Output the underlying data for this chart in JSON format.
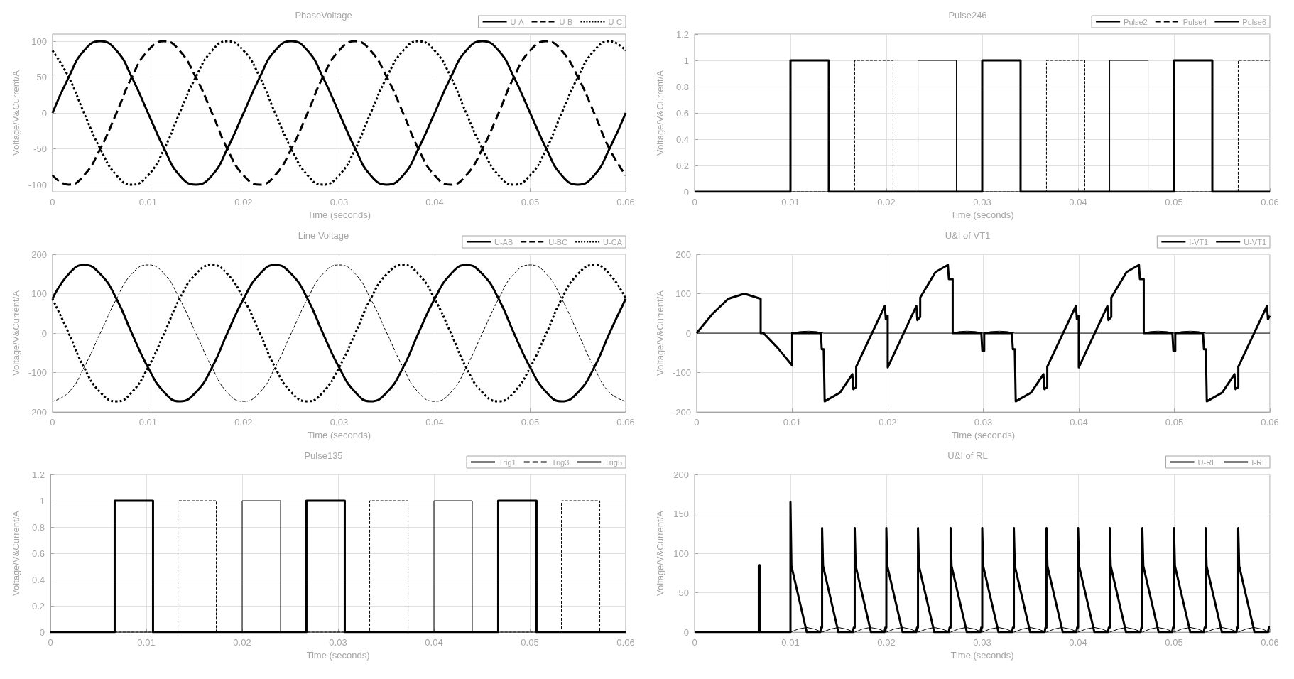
{
  "chart_data": [
    {
      "type": "line",
      "title": "PhaseVoltage",
      "xlabel": "Time (seconds)",
      "ylabel": "Voltage/V&Current/A",
      "xlim": [
        0,
        0.06
      ],
      "xticks": [
        0,
        0.01,
        0.02,
        0.03,
        0.04,
        0.05,
        0.06
      ],
      "ylim": [
        -110,
        110
      ],
      "yticks": [
        -100,
        -50,
        0,
        50,
        100
      ],
      "grid": true,
      "legend": "top right",
      "marker": "none",
      "x": [
        0,
        0.0017,
        0.0033,
        0.005,
        0.0067,
        0.0083,
        0.01,
        0.0117,
        0.0133,
        0.015,
        0.0167,
        0.0183,
        0.02,
        0.0217,
        0.0233,
        0.025,
        0.0267,
        0.0283,
        0.03,
        0.0317,
        0.0333,
        0.035,
        0.0367,
        0.0383,
        0.04,
        0.0417,
        0.0433,
        0.045,
        0.0467,
        0.0483,
        0.05,
        0.0517,
        0.0533,
        0.055,
        0.0567,
        0.0583,
        0.06
      ],
      "series": [
        {
          "name": "U-A",
          "color": "#000000",
          "line_style": "solid",
          "values": [
            0,
            50,
            87,
            100,
            87,
            50,
            0,
            -50,
            -87,
            -100,
            -87,
            -50,
            0,
            50,
            87,
            100,
            87,
            50,
            0,
            -50,
            -87,
            -100,
            -87,
            -50,
            0,
            50,
            87,
            100,
            87,
            50,
            0,
            -50,
            -87,
            -100,
            -87,
            -50,
            0
          ]
        },
        {
          "name": "U-B",
          "color": "#000000",
          "line_style": "dashed",
          "values": [
            -87,
            -100,
            -87,
            -50,
            0,
            50,
            87,
            100,
            87,
            50,
            0,
            -50,
            -87,
            -100,
            -87,
            -50,
            0,
            50,
            87,
            100,
            87,
            50,
            0,
            -50,
            -87,
            -100,
            -87,
            -50,
            0,
            50,
            87,
            100,
            87,
            50,
            0,
            -50,
            -87
          ]
        },
        {
          "name": "U-C",
          "color": "#000000",
          "line_style": "dotted",
          "values": [
            87,
            50,
            0,
            -50,
            -87,
            -100,
            -87,
            -50,
            0,
            50,
            87,
            100,
            87,
            50,
            0,
            -50,
            -87,
            -100,
            -87,
            -50,
            0,
            50,
            87,
            100,
            87,
            50,
            0,
            -50,
            -87,
            -100,
            -87,
            -50,
            0,
            50,
            87,
            100,
            87
          ]
        }
      ]
    },
    {
      "type": "line",
      "title": "Pulse246",
      "xlabel": "Time (seconds)",
      "ylabel": "Voltage/V&Current/A",
      "xlim": [
        0,
        0.06
      ],
      "xticks": [
        0,
        0.01,
        0.02,
        0.03,
        0.04,
        0.05,
        0.06
      ],
      "ylim": [
        0,
        1.2
      ],
      "yticks": [
        0,
        0.2,
        0.4,
        0.6,
        0.8,
        1,
        1.2
      ],
      "grid": true,
      "legend": "top right",
      "marker": "none",
      "series": [
        {
          "name": "Pulse2",
          "color": "#000000",
          "line_style": "solid",
          "x": [
            0,
            0.01,
            0.01,
            0.014,
            0.014,
            0.03,
            0.03,
            0.034,
            0.034,
            0.05,
            0.05,
            0.054,
            0.054,
            0.06
          ],
          "values": [
            0,
            0,
            1,
            1,
            0,
            0,
            1,
            1,
            0,
            0,
            1,
            1,
            0,
            0
          ]
        },
        {
          "name": "Pulse4",
          "color": "#000000",
          "line_style": "dashed",
          "x": [
            0,
            0.0167,
            0.0167,
            0.0207,
            0.0207,
            0.0367,
            0.0367,
            0.0407,
            0.0407,
            0.0567,
            0.0567,
            0.06
          ],
          "values": [
            0,
            0,
            1,
            1,
            0,
            0,
            1,
            1,
            0,
            0,
            1,
            1
          ]
        },
        {
          "name": "Pulse6",
          "color": "#000000",
          "line_style": "solid",
          "x": [
            0,
            0.0233,
            0.0233,
            0.0273,
            0.0273,
            0.0433,
            0.0433,
            0.0473,
            0.0473,
            0.06
          ],
          "values": [
            0,
            0,
            1,
            1,
            0,
            0,
            1,
            1,
            0,
            0
          ]
        }
      ]
    },
    {
      "type": "line",
      "title": "Line Voltage",
      "xlabel": "Time (seconds)",
      "ylabel": "Voltage/V&Current/A",
      "xlim": [
        0,
        0.06
      ],
      "xticks": [
        0,
        0.01,
        0.02,
        0.03,
        0.04,
        0.05,
        0.06
      ],
      "ylim": [
        -200,
        200
      ],
      "yticks": [
        -200,
        -100,
        0,
        100,
        200
      ],
      "grid": true,
      "legend": "top right",
      "marker": "none",
      "x": [
        0,
        0.0017,
        0.0033,
        0.005,
        0.0067,
        0.0083,
        0.01,
        0.0117,
        0.0133,
        0.015,
        0.0167,
        0.0183,
        0.02,
        0.0217,
        0.0233,
        0.025,
        0.0267,
        0.0283,
        0.03,
        0.0317,
        0.0333,
        0.035,
        0.0367,
        0.0383,
        0.04,
        0.0417,
        0.0433,
        0.045,
        0.0467,
        0.0483,
        0.05,
        0.0517,
        0.0533,
        0.055,
        0.0567,
        0.0583,
        0.06
      ],
      "series": [
        {
          "name": "U-AB",
          "color": "#000000",
          "line_style": "solid",
          "values": [
            87,
            150,
            173,
            150,
            87,
            0,
            -87,
            -150,
            -173,
            -150,
            -87,
            0,
            87,
            150,
            173,
            150,
            87,
            0,
            -87,
            -150,
            -173,
            -150,
            -87,
            0,
            87,
            150,
            173,
            150,
            87,
            0,
            -87,
            -150,
            -173,
            -150,
            -87,
            0,
            87
          ]
        },
        {
          "name": "U-BC",
          "color": "#000000",
          "line_style": "dashed",
          "values": [
            -173,
            -150,
            -87,
            0,
            87,
            150,
            173,
            150,
            87,
            0,
            -87,
            -150,
            -173,
            -150,
            -87,
            0,
            87,
            150,
            173,
            150,
            87,
            0,
            -87,
            -150,
            -173,
            -150,
            -87,
            0,
            87,
            150,
            173,
            150,
            87,
            0,
            -87,
            -150,
            -173
          ]
        },
        {
          "name": "U-CA",
          "color": "#000000",
          "line_style": "dotted",
          "values": [
            87,
            0,
            -87,
            -150,
            -173,
            -150,
            -87,
            0,
            87,
            150,
            173,
            150,
            87,
            0,
            -87,
            -150,
            -173,
            -150,
            -87,
            0,
            87,
            150,
            173,
            150,
            87,
            0,
            -87,
            -150,
            -173,
            -150,
            -87,
            0,
            87,
            150,
            173,
            150,
            87
          ]
        }
      ]
    },
    {
      "type": "line",
      "title": "U&I of VT1",
      "xlabel": "Time (seconds)",
      "ylabel": "Voltage/V&Current/A",
      "xlim": [
        0,
        0.06
      ],
      "xticks": [
        0,
        0.01,
        0.02,
        0.03,
        0.04,
        0.05,
        0.06
      ],
      "ylim": [
        -200,
        200
      ],
      "yticks": [
        -200,
        -100,
        0,
        100,
        200
      ],
      "grid": true,
      "legend": "top right",
      "marker": "none",
      "series": [
        {
          "name": "I-VT1",
          "color": "#000000",
          "line_style": "solid",
          "x": [
            0,
            0.01,
            0.0108,
            0.0117,
            0.0125,
            0.0133,
            0.0267,
            0.0275,
            0.0283,
            0.0292,
            0.03,
            0.0308,
            0.0317,
            0.0325,
            0.0333,
            0.0467,
            0.0475,
            0.0483,
            0.0492,
            0.05,
            0.0508,
            0.0517,
            0.0525,
            0.0533,
            0.06
          ],
          "values": [
            0,
            0,
            4,
            5,
            4,
            0,
            0,
            4,
            5,
            4,
            0,
            4,
            5,
            4,
            0,
            0,
            4,
            5,
            4,
            0,
            4,
            5,
            4,
            0,
            0
          ]
        },
        {
          "name": "U-VT1",
          "color": "#000000",
          "line_style": "solid",
          "x": [
            0,
            0.0017,
            0.0033,
            0.005,
            0.0067,
            0.0067,
            0.007,
            0.0085,
            0.01,
            0.01,
            0.013,
            0.0131,
            0.0133,
            0.0134,
            0.015,
            0.0163,
            0.0164,
            0.0167,
            0.0167,
            0.0197,
            0.0198,
            0.02,
            0.02,
            0.023,
            0.0231,
            0.0234,
            0.0234,
            0.025,
            0.0263,
            0.0264,
            0.0268,
            0.0268,
            0.0298,
            0.0299,
            0.0301,
            0.0301,
            0.033,
            0.0331,
            0.0333,
            0.0334,
            0.035,
            0.0363,
            0.0364,
            0.0367,
            0.0367,
            0.0397,
            0.0398,
            0.04,
            0.04,
            0.043,
            0.0431,
            0.0434,
            0.0434,
            0.045,
            0.0463,
            0.0464,
            0.0468,
            0.0468,
            0.0498,
            0.0499,
            0.0501,
            0.0501,
            0.053,
            0.0531,
            0.0533,
            0.0534,
            0.055,
            0.0563,
            0.0564,
            0.0567,
            0.0567,
            0.0597,
            0.0598,
            0.06
          ],
          "values": [
            0,
            50,
            87,
            100,
            87,
            0,
            0,
            -38,
            -82,
            0,
            0,
            -41,
            -41,
            -173,
            -151,
            -104,
            -142,
            -137,
            -85,
            69,
            35,
            44,
            -87,
            69,
            33,
            41,
            90,
            155,
            173,
            137,
            137,
            0,
            0,
            -45,
            -45,
            0,
            0,
            -41,
            -41,
            -173,
            -151,
            -104,
            -142,
            -137,
            -85,
            69,
            35,
            44,
            -87,
            69,
            33,
            41,
            90,
            155,
            173,
            137,
            137,
            0,
            0,
            -45,
            -45,
            0,
            0,
            -41,
            -41,
            -173,
            -151,
            -104,
            -142,
            -137,
            -85,
            69,
            35,
            44
          ]
        }
      ]
    },
    {
      "type": "line",
      "title": "Pulse135",
      "xlabel": "Time (seconds)",
      "ylabel": "Voltage/V&Current/A",
      "xlim": [
        0,
        0.06
      ],
      "xticks": [
        0,
        0.01,
        0.02,
        0.03,
        0.04,
        0.05,
        0.06
      ],
      "ylim": [
        0,
        1.2
      ],
      "yticks": [
        0,
        0.2,
        0.4,
        0.6,
        0.8,
        1,
        1.2
      ],
      "grid": true,
      "legend": "top right",
      "marker": "none",
      "series": [
        {
          "name": "Trig1",
          "color": "#000000",
          "line_style": "solid",
          "x": [
            0,
            0.0067,
            0.0067,
            0.0107,
            0.0107,
            0.0267,
            0.0267,
            0.0307,
            0.0307,
            0.0467,
            0.0467,
            0.0507,
            0.0507,
            0.06
          ],
          "values": [
            0,
            0,
            1,
            1,
            0,
            0,
            1,
            1,
            0,
            0,
            1,
            1,
            0,
            0
          ]
        },
        {
          "name": "Trig3",
          "color": "#000000",
          "line_style": "dashed",
          "x": [
            0,
            0.0133,
            0.0133,
            0.0173,
            0.0173,
            0.0333,
            0.0333,
            0.0373,
            0.0373,
            0.0533,
            0.0533,
            0.0573,
            0.0573,
            0.06
          ],
          "values": [
            0,
            0,
            1,
            1,
            0,
            0,
            1,
            1,
            0,
            0,
            1,
            1,
            0,
            0
          ]
        },
        {
          "name": "Trig5",
          "color": "#000000",
          "line_style": "solid",
          "x": [
            0,
            0.02,
            0.02,
            0.024,
            0.024,
            0.04,
            0.04,
            0.044,
            0.044,
            0.06
          ],
          "values": [
            0,
            0,
            1,
            1,
            0,
            0,
            1,
            1,
            0,
            0
          ]
        }
      ]
    },
    {
      "type": "line",
      "title": "U&I of RL",
      "xlabel": "Time (seconds)",
      "ylabel": "Voltage/V&Current/A",
      "xlim": [
        0,
        0.06
      ],
      "xticks": [
        0,
        0.01,
        0.02,
        0.03,
        0.04,
        0.05,
        0.06
      ],
      "ylim": [
        0,
        200
      ],
      "yticks": [
        0,
        50,
        100,
        150,
        200
      ],
      "grid": true,
      "legend": "top right",
      "marker": "none",
      "series": [
        {
          "name": "U-RL",
          "color": "#000000",
          "line_style": "solid",
          "x": [
            0,
            0.0067,
            0.0067,
            0.0068,
            0.0068,
            0.01,
            0.01,
            0.0101,
            0.0117,
            0.0131,
            0.0132,
            0.0133,
            0.0133,
            0.0134,
            0.015,
            0.0165,
            0.0166,
            0.0167,
            0.0167,
            0.0168,
            0.0184,
            0.0198,
            0.0199,
            0.02,
            0.02,
            0.0201,
            0.0217,
            0.0231,
            0.0232,
            0.0233,
            0.0233,
            0.0234,
            0.025,
            0.0265,
            0.0266,
            0.0267,
            0.0267,
            0.0268,
            0.0284,
            0.0298,
            0.0299,
            0.03,
            0.03,
            0.0301,
            0.0317,
            0.0331,
            0.0332,
            0.0333,
            0.0333,
            0.0334,
            0.035,
            0.0365,
            0.0366,
            0.0367,
            0.0367,
            0.0368,
            0.0384,
            0.0398,
            0.0399,
            0.04,
            0.04,
            0.0401,
            0.0417,
            0.0431,
            0.0432,
            0.0433,
            0.0433,
            0.0434,
            0.045,
            0.0465,
            0.0466,
            0.0467,
            0.0467,
            0.0468,
            0.0484,
            0.0498,
            0.0499,
            0.05,
            0.05,
            0.0501,
            0.0517,
            0.0531,
            0.0532,
            0.0533,
            0.0533,
            0.0534,
            0.055,
            0.0565,
            0.0566,
            0.0567,
            0.0567,
            0.0568,
            0.0584,
            0.0598,
            0.0599,
            0.06
          ],
          "values": [
            0,
            0,
            85,
            85,
            0,
            0,
            165,
            84,
            0,
            0,
            6,
            6,
            132,
            84,
            0,
            0,
            6,
            6,
            132,
            84,
            0,
            0,
            6,
            6,
            132,
            84,
            0,
            0,
            6,
            6,
            132,
            84,
            0,
            0,
            6,
            6,
            132,
            84,
            0,
            0,
            6,
            6,
            132,
            84,
            0,
            0,
            6,
            6,
            132,
            84,
            0,
            0,
            6,
            6,
            132,
            84,
            0,
            0,
            6,
            6,
            132,
            84,
            0,
            0,
            6,
            6,
            132,
            84,
            0,
            0,
            6,
            6,
            132,
            84,
            0,
            0,
            6,
            6,
            132,
            84,
            0,
            0,
            6,
            6,
            132,
            84,
            0,
            0,
            6,
            6,
            132,
            84,
            0,
            0,
            6,
            6
          ]
        },
        {
          "name": "I-RL",
          "color": "#000000",
          "line_style": "solid",
          "x": [
            0,
            0.01,
            0.0108,
            0.0117,
            0.0125,
            0.0133,
            0.0142,
            0.015,
            0.0158,
            0.0167,
            0.0175,
            0.0183,
            0.0192,
            0.02,
            0.0208,
            0.0217,
            0.0225,
            0.0233,
            0.0242,
            0.025,
            0.0258,
            0.0267,
            0.0275,
            0.0283,
            0.0292,
            0.03,
            0.0308,
            0.0317,
            0.0325,
            0.0333,
            0.0342,
            0.035,
            0.0358,
            0.0367,
            0.0375,
            0.0383,
            0.0392,
            0.04,
            0.0408,
            0.0417,
            0.0425,
            0.0433,
            0.0442,
            0.045,
            0.0458,
            0.0467,
            0.0475,
            0.0483,
            0.0492,
            0.05,
            0.0508,
            0.0517,
            0.0525,
            0.0533,
            0.0542,
            0.055,
            0.0558,
            0.0567,
            0.0575,
            0.0583,
            0.0592,
            0.06
          ],
          "values": [
            0,
            0,
            4,
            6,
            4,
            0,
            4,
            6,
            4,
            0,
            4,
            6,
            4,
            0,
            4,
            6,
            4,
            0,
            4,
            6,
            4,
            0,
            4,
            6,
            4,
            0,
            4,
            6,
            4,
            0,
            4,
            6,
            4,
            0,
            4,
            6,
            4,
            0,
            4,
            6,
            4,
            0,
            4,
            6,
            4,
            0,
            4,
            6,
            4,
            0,
            4,
            6,
            4,
            0,
            4,
            6,
            4,
            0,
            4,
            6,
            4,
            0
          ]
        }
      ]
    }
  ]
}
